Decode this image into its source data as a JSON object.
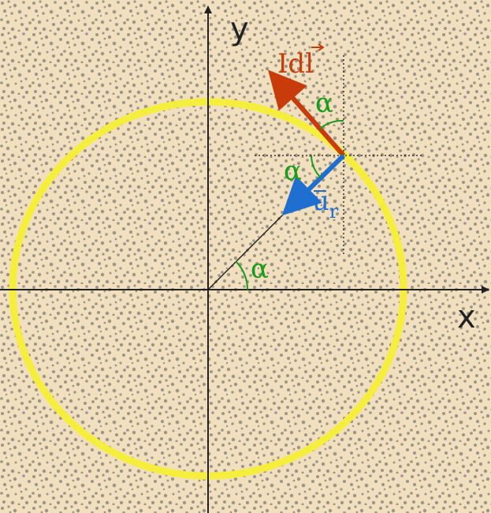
{
  "axes": {
    "x": "x",
    "y": "y"
  },
  "vectors": [
    {
      "label": "Idl"
    },
    {
      "label": "u",
      "subscript": "r"
    }
  ],
  "angles": [
    "α",
    "α",
    "α"
  ]
}
